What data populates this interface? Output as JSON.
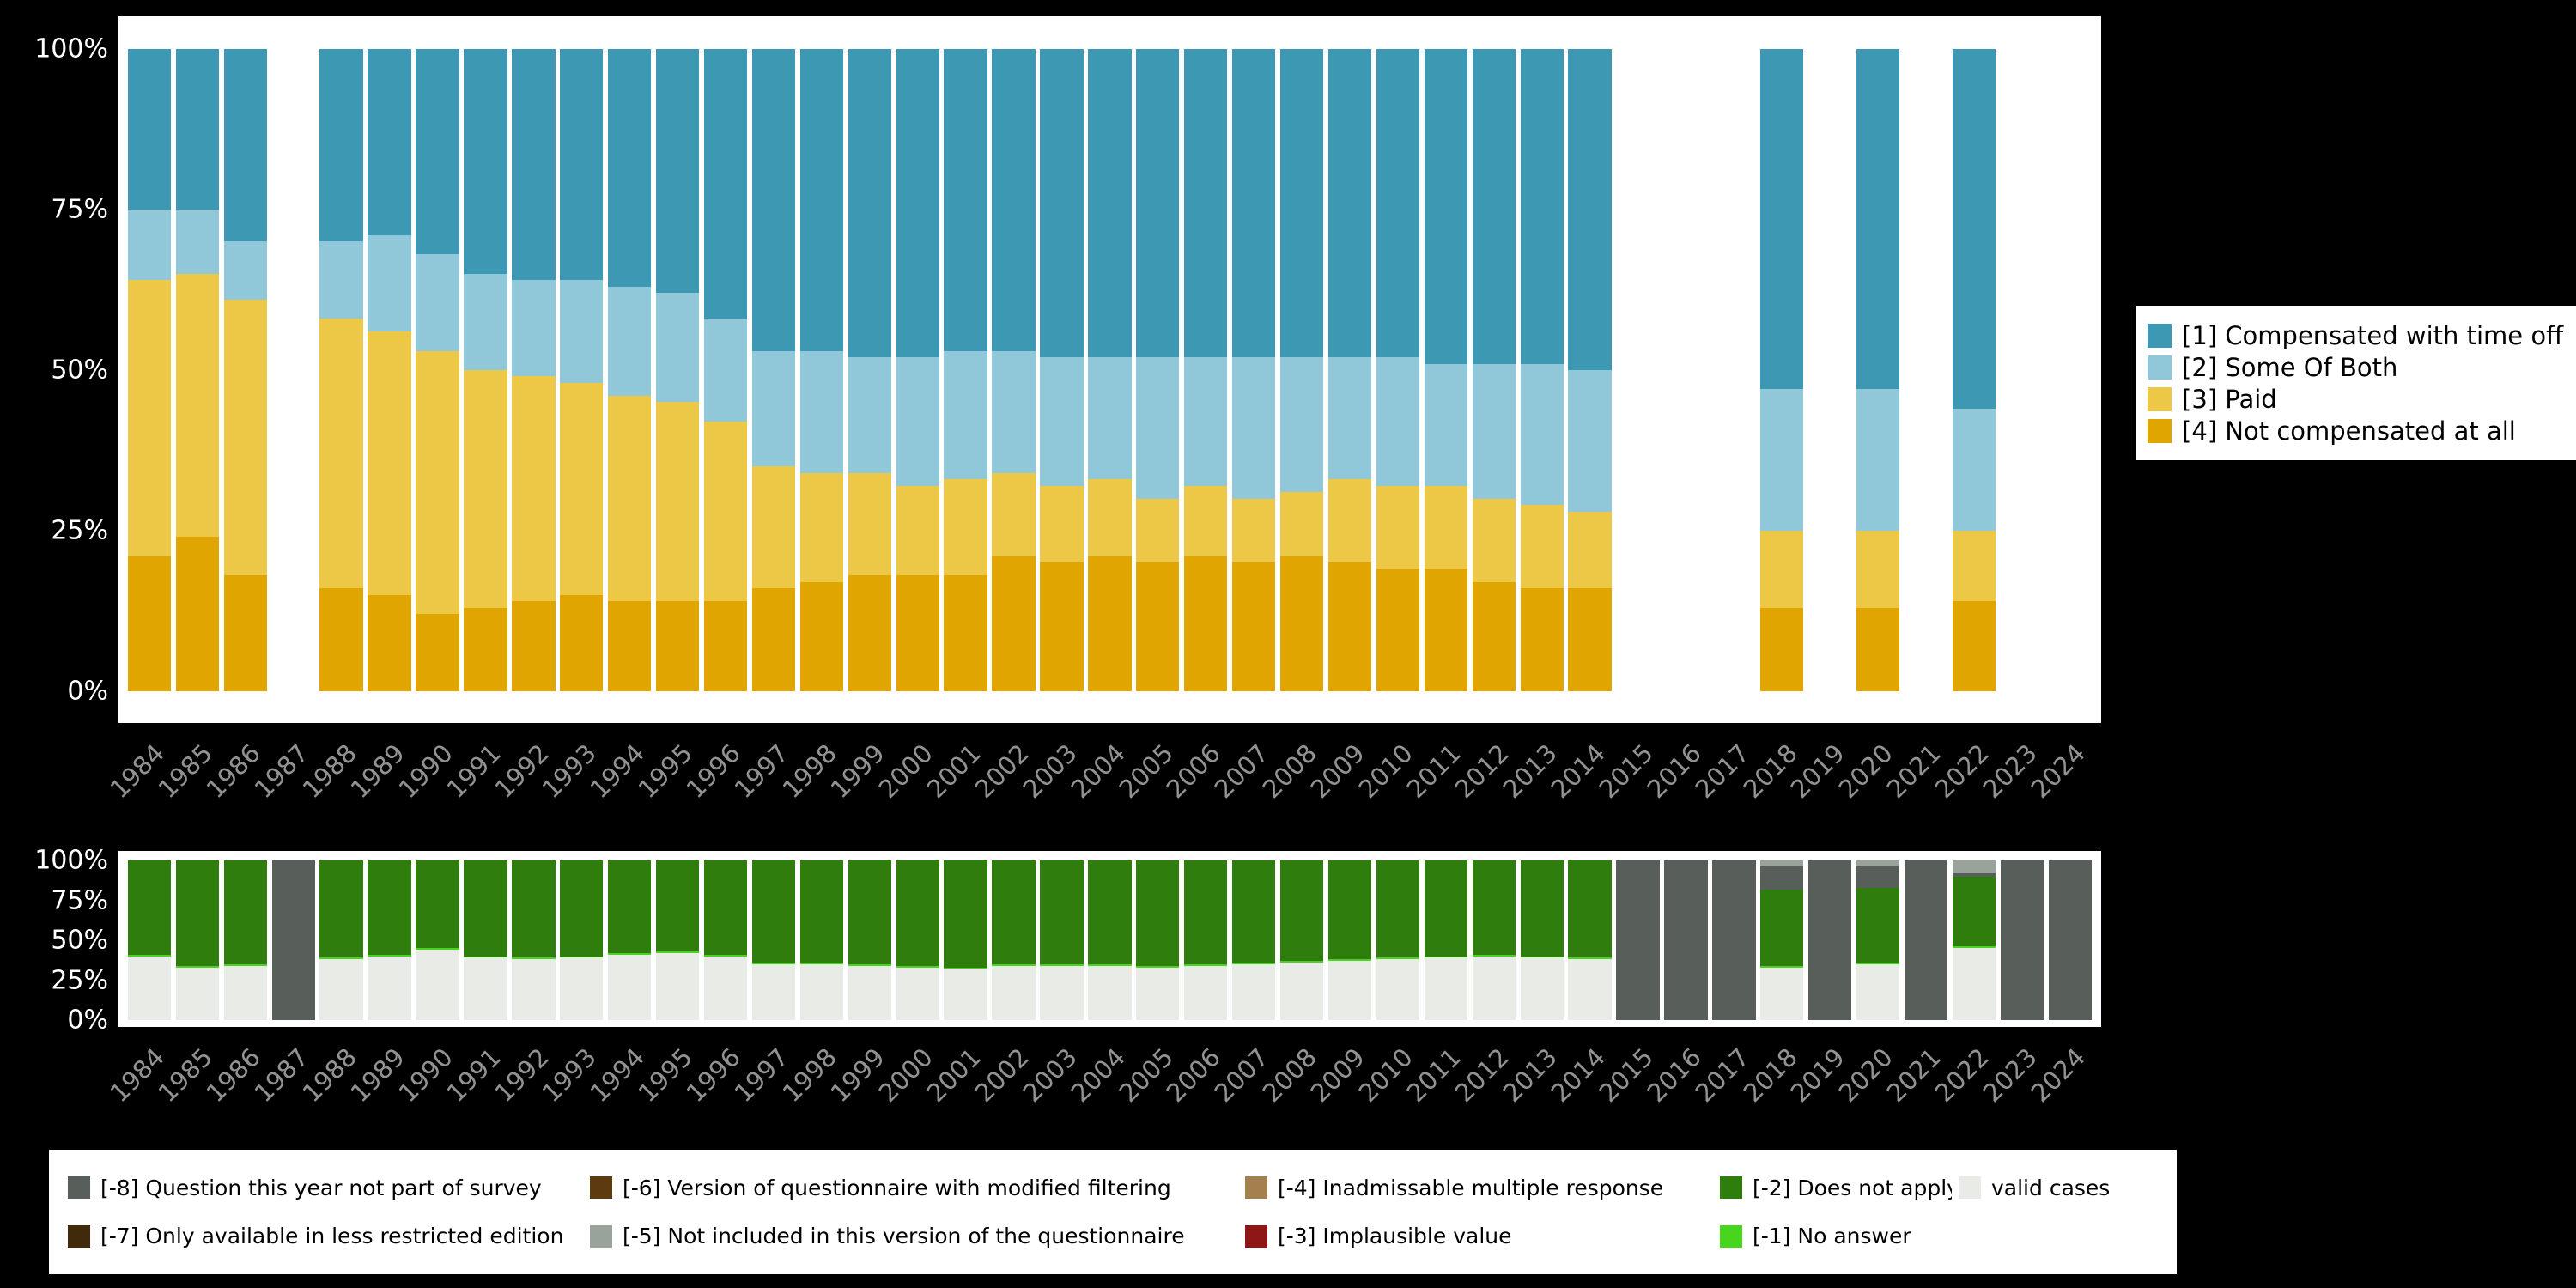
{
  "background_color": "#000000",
  "panel_color": "#ffffff",
  "axis": {
    "x_tick_color": "#929292",
    "y_tick_color": "#ffffff"
  },
  "chart_data": [
    {
      "id": "main-trend",
      "type": "bar",
      "stacked": true,
      "unit": "percent",
      "title": "",
      "xlabel": "",
      "ylabel": "",
      "ylim": [
        0,
        100
      ],
      "grid": false,
      "legend_position": "right",
      "y_ticks": [
        "100%",
        "75%",
        "50%",
        "25%",
        "0%"
      ],
      "categories": [
        "1984",
        "1985",
        "1986",
        "1987",
        "1988",
        "1989",
        "1990",
        "1991",
        "1992",
        "1993",
        "1994",
        "1995",
        "1996",
        "1997",
        "1998",
        "1999",
        "2000",
        "2001",
        "2002",
        "2003",
        "2004",
        "2005",
        "2006",
        "2007",
        "2008",
        "2009",
        "2010",
        "2011",
        "2012",
        "2013",
        "2014",
        "2015",
        "2016",
        "2017",
        "2018",
        "2019",
        "2020",
        "2021",
        "2022",
        "2023",
        "2024"
      ],
      "series": [
        {
          "name": "[4] Not compensated at all",
          "color": "#e1a500",
          "values": [
            21,
            24,
            18,
            null,
            16,
            15,
            12,
            13,
            14,
            15,
            14,
            14,
            14,
            16,
            17,
            18,
            18,
            18,
            21,
            20,
            21,
            20,
            21,
            20,
            21,
            20,
            19,
            19,
            17,
            16,
            16,
            null,
            null,
            null,
            13,
            null,
            13,
            null,
            14,
            null,
            null
          ]
        },
        {
          "name": "[3] Paid",
          "color": "#ecc846",
          "values": [
            43,
            41,
            43,
            null,
            42,
            41,
            41,
            37,
            35,
            33,
            32,
            31,
            28,
            19,
            17,
            16,
            14,
            15,
            13,
            12,
            12,
            10,
            11,
            10,
            10,
            13,
            13,
            13,
            13,
            13,
            12,
            null,
            null,
            null,
            12,
            null,
            12,
            null,
            11,
            null,
            null
          ]
        },
        {
          "name": "[2] Some Of Both",
          "color": "#90c8da",
          "values": [
            11,
            10,
            9,
            null,
            12,
            15,
            15,
            15,
            15,
            16,
            17,
            17,
            16,
            18,
            19,
            18,
            20,
            20,
            19,
            20,
            19,
            22,
            20,
            22,
            21,
            19,
            20,
            19,
            21,
            22,
            22,
            null,
            null,
            null,
            22,
            null,
            22,
            null,
            19,
            null,
            null
          ]
        },
        {
          "name": "[1] Compensated with time off",
          "color": "#3d98b3",
          "values": [
            25,
            25,
            30,
            null,
            30,
            29,
            32,
            35,
            36,
            36,
            37,
            38,
            42,
            47,
            47,
            48,
            48,
            47,
            47,
            48,
            48,
            48,
            48,
            48,
            48,
            48,
            48,
            49,
            49,
            49,
            50,
            null,
            null,
            null,
            53,
            null,
            53,
            null,
            56,
            null,
            null
          ]
        }
      ],
      "legend": [
        {
          "label": "[1] Compensated with time off",
          "color": "#3d98b3"
        },
        {
          "label": "[2] Some Of Both",
          "color": "#90c8da"
        },
        {
          "label": "[3] Paid",
          "color": "#ecc846"
        },
        {
          "label": "[4] Not compensated at all",
          "color": "#e1a500"
        }
      ]
    },
    {
      "id": "missing-values",
      "type": "bar",
      "stacked": true,
      "unit": "percent",
      "title": "",
      "xlabel": "",
      "ylabel": "",
      "ylim": [
        0,
        100
      ],
      "grid": false,
      "legend_position": "bottom",
      "y_ticks": [
        "100%",
        "75%",
        "50%",
        "25%",
        "0%"
      ],
      "categories": [
        "1984",
        "1985",
        "1986",
        "1987",
        "1988",
        "1989",
        "1990",
        "1991",
        "1992",
        "1993",
        "1994",
        "1995",
        "1996",
        "1997",
        "1998",
        "1999",
        "2000",
        "2001",
        "2002",
        "2003",
        "2004",
        "2005",
        "2006",
        "2007",
        "2008",
        "2009",
        "2010",
        "2011",
        "2012",
        "2013",
        "2014",
        "2015",
        "2016",
        "2017",
        "2018",
        "2019",
        "2020",
        "2021",
        "2022",
        "2023",
        "2024"
      ],
      "series": [
        {
          "name": "valid cases",
          "color": "#e8ebe6",
          "values": [
            40,
            33,
            34,
            0,
            38,
            40,
            44,
            39,
            38,
            39,
            41,
            42,
            40,
            35,
            35,
            34,
            33,
            32,
            34,
            34,
            34,
            33,
            34,
            35,
            36,
            37,
            38,
            39,
            40,
            39,
            38,
            0,
            0,
            0,
            33,
            0,
            35,
            0,
            45,
            0,
            0
          ]
        },
        {
          "name": "[-1] No answer",
          "color": "#48d41f",
          "values": [
            1,
            1,
            1,
            0,
            1,
            1,
            1,
            1,
            1,
            1,
            1,
            1,
            1,
            1,
            1,
            1,
            1,
            1,
            1,
            1,
            1,
            1,
            1,
            1,
            1,
            1,
            1,
            1,
            1,
            1,
            1,
            0,
            0,
            0,
            1,
            0,
            1,
            0,
            1,
            0,
            0
          ]
        },
        {
          "name": "[-2] Does not apply",
          "color": "#2e7d0d",
          "values": [
            59,
            66,
            65,
            0,
            61,
            59,
            55,
            60,
            61,
            60,
            58,
            57,
            59,
            64,
            64,
            65,
            66,
            67,
            65,
            65,
            65,
            66,
            65,
            64,
            63,
            62,
            61,
            60,
            59,
            60,
            61,
            0,
            0,
            0,
            48,
            0,
            47,
            0,
            44,
            0,
            0
          ]
        },
        {
          "name": "[-8] Question this year not part of survey",
          "color": "#585f5a",
          "values": [
            0,
            0,
            0,
            100,
            0,
            0,
            0,
            0,
            0,
            0,
            0,
            0,
            0,
            0,
            0,
            0,
            0,
            0,
            0,
            0,
            0,
            0,
            0,
            0,
            0,
            0,
            0,
            0,
            0,
            0,
            0,
            100,
            100,
            100,
            14,
            100,
            13,
            100,
            2,
            100,
            100
          ]
        },
        {
          "name": "[-5] Not included in this version of the questionnaire",
          "color": "#9aa39b",
          "values": [
            0,
            0,
            0,
            0,
            0,
            0,
            0,
            0,
            0,
            0,
            0,
            0,
            0,
            0,
            0,
            0,
            0,
            0,
            0,
            0,
            0,
            0,
            0,
            0,
            0,
            0,
            0,
            0,
            0,
            0,
            0,
            0,
            0,
            0,
            4,
            0,
            4,
            0,
            8,
            0,
            0
          ]
        }
      ],
      "legend": [
        {
          "label": "[-8] Question this year not part of survey",
          "color": "#585f5a"
        },
        {
          "label": "[-7] Only available in less restricted edition",
          "color": "#402a0a"
        },
        {
          "label": "[-6] Version of questionnaire with modified filtering",
          "color": "#5e3a10"
        },
        {
          "label": "[-5] Not included in this version of the questionnaire",
          "color": "#9aa39b"
        },
        {
          "label": "[-4] Inadmissable multiple response",
          "color": "#a5804f"
        },
        {
          "label": "[-3] Implausible value",
          "color": "#8f1616"
        },
        {
          "label": "[-2] Does not apply",
          "color": "#2e7d0d"
        },
        {
          "label": "[-1] No answer",
          "color": "#48d41f"
        },
        {
          "label": "valid cases",
          "color": "#e8ebe6"
        }
      ]
    }
  ]
}
